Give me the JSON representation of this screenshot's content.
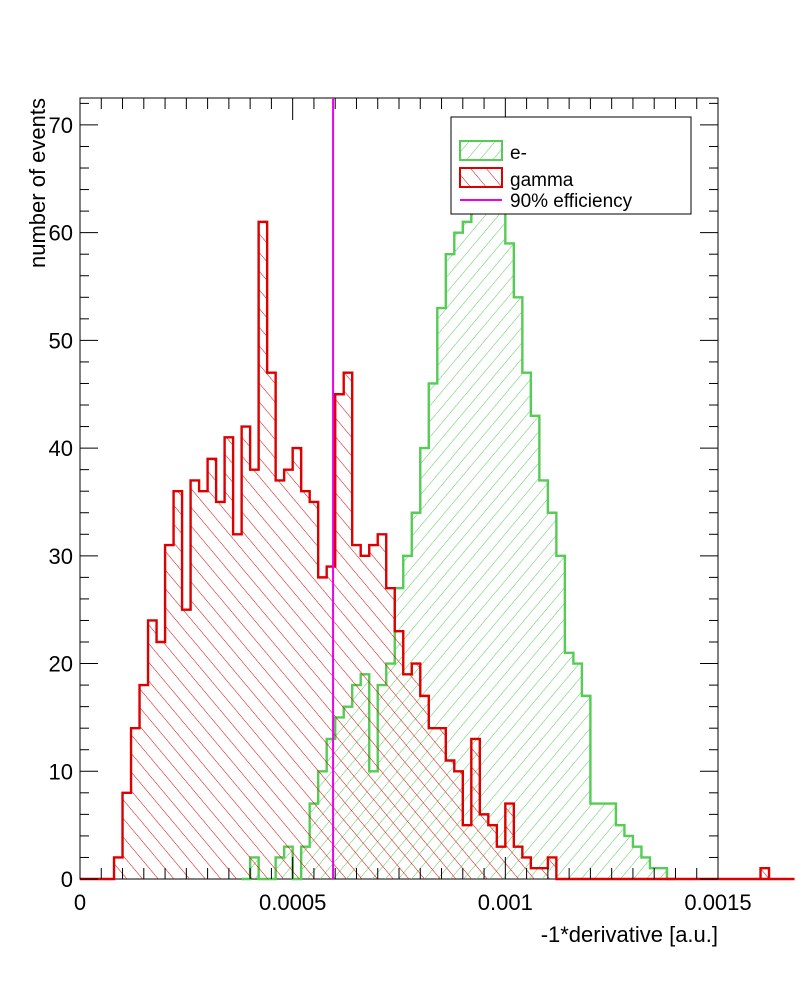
{
  "chart_data": {
    "type": "histogram",
    "xlabel": "-1*derivative [a.u.]",
    "ylabel": "number of events",
    "xlim": [
      0,
      0.0015
    ],
    "ylim": [
      0,
      72.5
    ],
    "bin_width": 2e-05,
    "x_ticks": [
      0,
      0.0005,
      0.001,
      0.0015
    ],
    "x_tick_labels": [
      "0",
      "0.0005",
      "0.001",
      "0.0015"
    ],
    "y_ticks": [
      0,
      10,
      20,
      30,
      40,
      50,
      60,
      70
    ],
    "y_tick_labels": [
      "0",
      "10",
      "20",
      "30",
      "40",
      "50",
      "60",
      "70"
    ],
    "grid": false,
    "legend_position": "top-right",
    "legend": [
      {
        "label": "e-",
        "color": "#55cc55",
        "style": "hatched-fill"
      },
      {
        "label": "gamma",
        "color": "#dd0000",
        "style": "hatched-fill"
      },
      {
        "label": "90% efficiency",
        "color": "#ee00ee",
        "style": "line"
      }
    ],
    "vertical_line": {
      "x": 0.000595,
      "color": "#ee00ee"
    },
    "series": [
      {
        "name": "e-",
        "color": "#55cc55",
        "bin_start": 0.00038,
        "counts": [
          0,
          2,
          0,
          0,
          2,
          3,
          0,
          3,
          7,
          10,
          13,
          15,
          16,
          18,
          19,
          10,
          18,
          20,
          27,
          30,
          34,
          40,
          46,
          53,
          58,
          60,
          61,
          65,
          66,
          68,
          69,
          59,
          54,
          47,
          43,
          37,
          34,
          30,
          21,
          20,
          17,
          7,
          7,
          7,
          5,
          4,
          3,
          2,
          1,
          1,
          0
        ]
      },
      {
        "name": "gamma",
        "color": "#dd0000",
        "bin_start": 6e-05,
        "counts": [
          0,
          2,
          8,
          14,
          18,
          24,
          22,
          31,
          36,
          25,
          37,
          36,
          39,
          35,
          41,
          32,
          42,
          38,
          61,
          47,
          37,
          38,
          40,
          36,
          35,
          28,
          29,
          45,
          47,
          31,
          30,
          31,
          32,
          27,
          23,
          19,
          20,
          17,
          14,
          14,
          11,
          10,
          5,
          13,
          6,
          5,
          3,
          7,
          3,
          2,
          1,
          1,
          2,
          0,
          0,
          0,
          0,
          0,
          0,
          0,
          0,
          0,
          0,
          0,
          0,
          0,
          0,
          0,
          0,
          0,
          0,
          0,
          0,
          0,
          0,
          0,
          0,
          1,
          0,
          0,
          0
        ]
      }
    ]
  }
}
